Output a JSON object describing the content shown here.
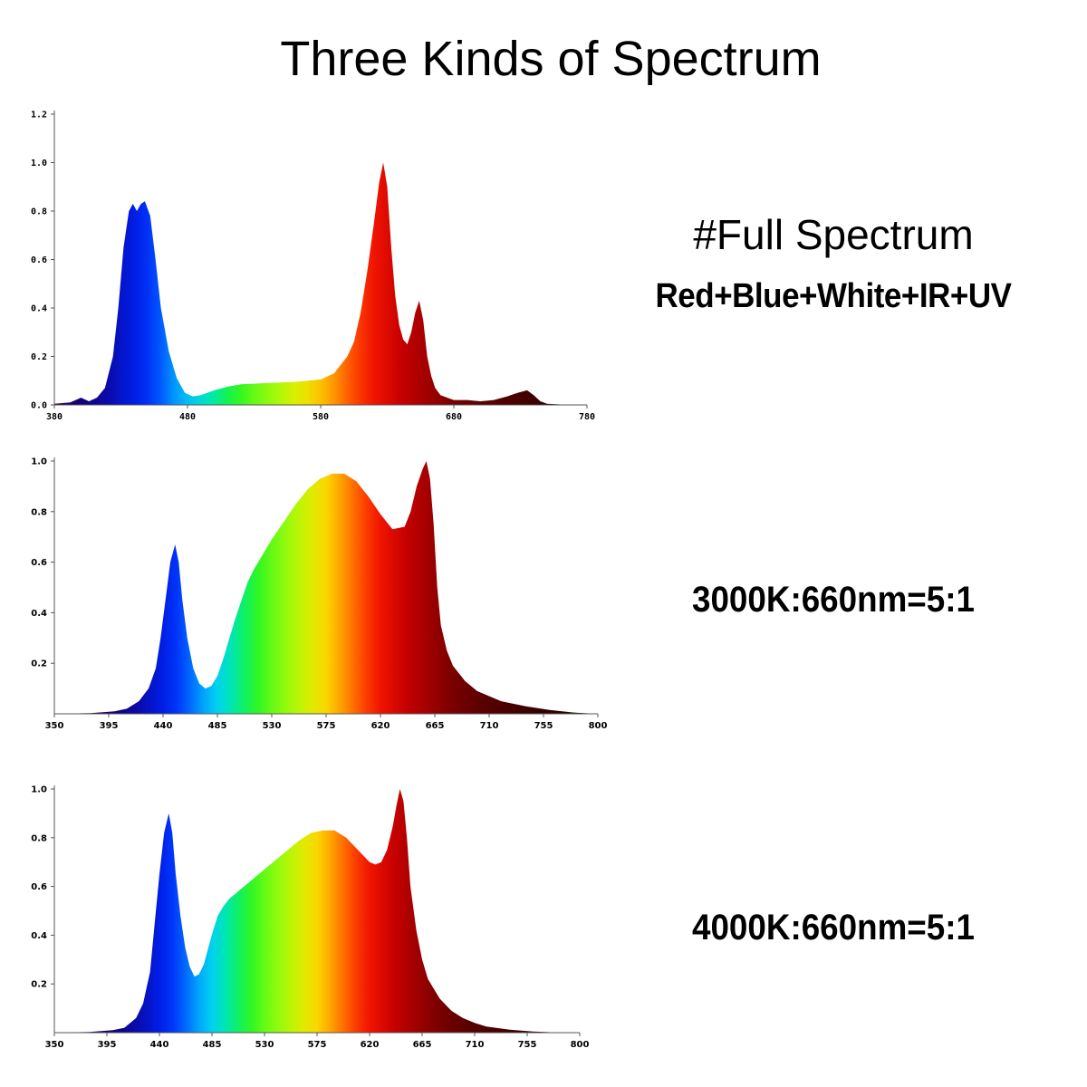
{
  "title": "Three Kinds of Spectrum",
  "labels": {
    "full_spectrum_title": "#Full Spectrum",
    "full_spectrum_sub": "Red+Blue+White+IR+UV",
    "k3000": "3000K:660nm=5:1",
    "k4000": "4000K:660nm=5:1"
  },
  "chart_data": [
    {
      "type": "area",
      "name_label": "#Full Spectrum",
      "xlim": [
        380,
        780
      ],
      "ylim": [
        0,
        1.2
      ],
      "xticks": [
        "380",
        "480",
        "580",
        "680",
        "780"
      ],
      "yticks": [
        "0.0",
        "0.2",
        "0.4",
        "0.6",
        "0.8",
        "1.0",
        "1.2"
      ],
      "x": [
        380,
        392,
        400,
        406,
        412,
        418,
        424,
        428,
        432,
        436,
        439,
        442,
        445,
        448,
        452,
        456,
        460,
        466,
        472,
        478,
        484,
        490,
        500,
        510,
        520,
        540,
        560,
        580,
        590,
        600,
        605,
        610,
        615,
        620,
        624,
        627,
        630,
        633,
        636,
        639,
        642,
        645,
        648,
        651,
        654,
        657,
        660,
        663,
        666,
        670,
        675,
        680,
        690,
        700,
        710,
        720,
        728,
        735,
        740,
        745,
        750,
        760,
        770,
        780
      ],
      "y": [
        0.005,
        0.01,
        0.03,
        0.015,
        0.03,
        0.07,
        0.2,
        0.4,
        0.65,
        0.8,
        0.83,
        0.8,
        0.83,
        0.84,
        0.78,
        0.6,
        0.4,
        0.22,
        0.11,
        0.05,
        0.035,
        0.04,
        0.06,
        0.075,
        0.085,
        0.09,
        0.095,
        0.105,
        0.13,
        0.2,
        0.26,
        0.38,
        0.55,
        0.75,
        0.92,
        1.0,
        0.9,
        0.65,
        0.45,
        0.33,
        0.27,
        0.25,
        0.3,
        0.38,
        0.43,
        0.35,
        0.2,
        0.12,
        0.07,
        0.04,
        0.03,
        0.02,
        0.02,
        0.015,
        0.02,
        0.035,
        0.05,
        0.06,
        0.04,
        0.015,
        0.005,
        0.002,
        0.001,
        0.0
      ]
    },
    {
      "type": "area",
      "name_label": "3000K:660nm=5:1",
      "xlim": [
        350,
        800
      ],
      "ylim": [
        0,
        1.0
      ],
      "xticks": [
        "350",
        "395",
        "440",
        "485",
        "530",
        "575",
        "620",
        "665",
        "710",
        "755",
        "800"
      ],
      "yticks": [
        "0.2",
        "0.4",
        "0.6",
        "0.8",
        "1.0"
      ],
      "x": [
        350,
        380,
        400,
        410,
        420,
        428,
        434,
        438,
        442,
        446,
        450,
        453,
        456,
        460,
        465,
        470,
        475,
        480,
        485,
        490,
        495,
        500,
        505,
        510,
        515,
        520,
        525,
        530,
        540,
        550,
        560,
        570,
        580,
        590,
        600,
        610,
        620,
        630,
        640,
        645,
        650,
        655,
        658,
        661,
        664,
        667,
        670,
        675,
        680,
        690,
        700,
        710,
        720,
        740,
        760,
        780,
        800
      ],
      "y": [
        0.0,
        0.003,
        0.01,
        0.02,
        0.05,
        0.1,
        0.18,
        0.3,
        0.45,
        0.6,
        0.67,
        0.6,
        0.45,
        0.3,
        0.18,
        0.12,
        0.1,
        0.11,
        0.15,
        0.22,
        0.3,
        0.38,
        0.45,
        0.52,
        0.57,
        0.61,
        0.65,
        0.69,
        0.76,
        0.83,
        0.89,
        0.93,
        0.95,
        0.95,
        0.92,
        0.86,
        0.79,
        0.73,
        0.74,
        0.8,
        0.9,
        0.97,
        1.0,
        0.93,
        0.75,
        0.5,
        0.35,
        0.25,
        0.19,
        0.13,
        0.09,
        0.07,
        0.05,
        0.03,
        0.015,
        0.005,
        0.0
      ]
    },
    {
      "type": "area",
      "name_label": "4000K:660nm=5:1",
      "xlim": [
        350,
        800
      ],
      "ylim": [
        0,
        1.0
      ],
      "xticks": [
        "350",
        "395",
        "440",
        "485",
        "530",
        "575",
        "620",
        "665",
        "710",
        "755",
        "800"
      ],
      "yticks": [
        "0.2",
        "0.4",
        "0.6",
        "0.8",
        "1.0"
      ],
      "x": [
        350,
        380,
        400,
        410,
        420,
        426,
        432,
        436,
        440,
        444,
        448,
        451,
        454,
        458,
        462,
        466,
        470,
        474,
        478,
        482,
        486,
        490,
        495,
        500,
        505,
        510,
        515,
        520,
        530,
        540,
        550,
        560,
        570,
        580,
        590,
        600,
        610,
        620,
        625,
        630,
        635,
        640,
        643,
        646,
        649,
        652,
        655,
        660,
        665,
        670,
        680,
        690,
        700,
        710,
        720,
        740,
        760,
        780,
        800
      ],
      "y": [
        0.0,
        0.003,
        0.01,
        0.02,
        0.06,
        0.12,
        0.25,
        0.45,
        0.65,
        0.82,
        0.9,
        0.82,
        0.65,
        0.48,
        0.35,
        0.27,
        0.23,
        0.24,
        0.28,
        0.35,
        0.42,
        0.48,
        0.52,
        0.55,
        0.57,
        0.59,
        0.61,
        0.63,
        0.67,
        0.71,
        0.75,
        0.79,
        0.82,
        0.83,
        0.83,
        0.8,
        0.75,
        0.7,
        0.69,
        0.7,
        0.75,
        0.85,
        0.93,
        1.0,
        0.95,
        0.8,
        0.6,
        0.42,
        0.3,
        0.22,
        0.14,
        0.09,
        0.06,
        0.04,
        0.025,
        0.012,
        0.005,
        0.001,
        0.0
      ]
    }
  ]
}
